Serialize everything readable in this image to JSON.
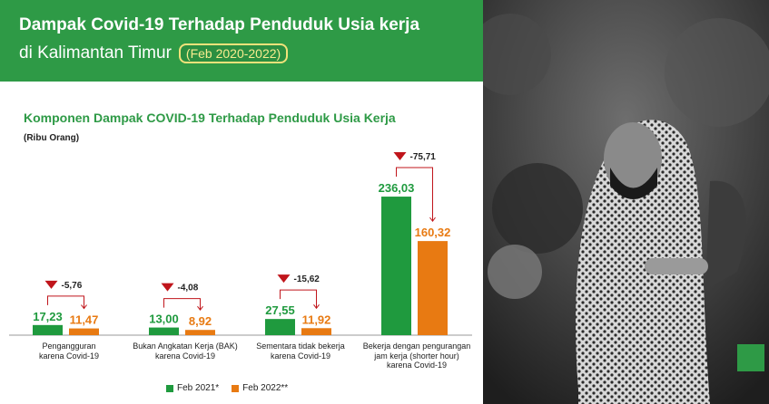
{
  "header": {
    "title_line1": "Dampak Covid-19 Terhadap Penduduk Usia kerja",
    "title_line2": "di Kalimantan Timur",
    "period_badge": "(Feb 2020-2022)"
  },
  "colors": {
    "header_bg": "#2e9a46",
    "series_2021": "#1f9a3e",
    "series_2022": "#e87a12",
    "delta": "#c0151b"
  },
  "chart_data": {
    "type": "bar",
    "title": "Komponen Dampak COVID-19 Terhadap Penduduk Usia Kerja",
    "unit": "(Ribu Orang)",
    "categories": [
      "Pengangguran karena Covid-19",
      "Bukan Angkatan Kerja (BAK) karena Covid-19",
      "Sementara tidak bekerja karena Covid-19",
      "Bekerja dengan pengurangan jam kerja (shorter hour) karena Covid-19"
    ],
    "category_lines": [
      [
        "Pengangguran",
        "karena Covid-19"
      ],
      [
        "Bukan Angkatan Kerja (BAK)",
        "karena Covid-19"
      ],
      [
        "Sementara tidak bekerja",
        "karena Covid-19"
      ],
      [
        "Bekerja dengan pengurangan",
        "jam kerja (shorter hour)",
        "karena Covid-19"
      ]
    ],
    "series": [
      {
        "name": "Feb 2021*",
        "values": [
          17.23,
          13.0,
          27.55,
          236.03
        ],
        "labels": [
          "17,23",
          "13,00",
          "27,55",
          "236,03"
        ]
      },
      {
        "name": "Feb 2022**",
        "values": [
          11.47,
          8.92,
          11.92,
          160.32
        ],
        "labels": [
          "11,47",
          "8,92",
          "11,92",
          "160,32"
        ]
      }
    ],
    "changes": [
      -5.76,
      -4.08,
      -15.62,
      -75.71
    ],
    "change_labels": [
      "-5,76",
      "-4,08",
      "-15,62",
      "-75,71"
    ],
    "ylim": [
      0,
      250
    ],
    "legend": "bottom"
  }
}
